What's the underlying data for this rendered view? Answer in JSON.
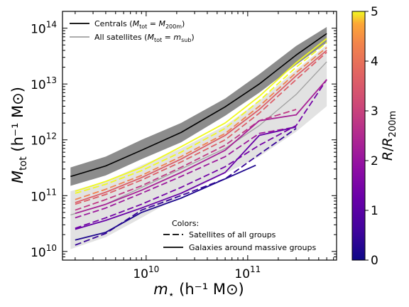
{
  "chart_data": {
    "type": "line",
    "title": "",
    "xlabel": {
      "base": "m",
      "sub": "⋆",
      "rest": " (h⁻¹ M⊙)"
    },
    "ylabel": {
      "base": "M",
      "sub": "tot",
      "rest": " (h⁻¹ M⊙)"
    },
    "xscale": "log",
    "yscale": "log",
    "xlim": [
      1500000000.0,
      750000000000.0
    ],
    "ylim": [
      7000000000.0,
      200000000000000.0
    ],
    "xticks": [
      {
        "value": 10000000000.0,
        "label": "10^10"
      },
      {
        "value": 100000000000.0,
        "label": "10^11"
      }
    ],
    "yticks": [
      {
        "value": 10000000000.0,
        "label": "10^10"
      },
      {
        "value": 100000000000.0,
        "label": "10^11"
      },
      {
        "value": 1000000000000.0,
        "label": "10^12"
      },
      {
        "value": 10000000000000.0,
        "label": "10^13"
      },
      {
        "value": 100000000000000.0,
        "label": "10^14"
      }
    ],
    "legend_top": {
      "placement": "top-left",
      "entries": [
        {
          "label": "Centrals (M_tot = M_200m)",
          "style": "solid",
          "color": "#000000"
        },
        {
          "label": "All satellites (M_tot = m_sub)",
          "style": "solid",
          "color": "#a0a0a0"
        }
      ]
    },
    "legend_bottom": {
      "placement": "lower-right",
      "title": "Colors:",
      "entries": [
        {
          "label": "Satellites of all groups",
          "style": "dashed"
        },
        {
          "label": "Galaxies around massive groups",
          "style": "solid"
        }
      ]
    },
    "colorbar": {
      "label": "R/R_200m",
      "range": [
        0,
        5
      ],
      "ticks": [
        "0",
        "1",
        "2",
        "3",
        "4",
        "5"
      ],
      "colormap": "plasma"
    },
    "bands": [
      {
        "name": "Centrals scatter",
        "color": "#8c8c8c",
        "x": [
          1800000000.0,
          4000000000.0,
          9000000000.0,
          22000000000.0,
          60000000000.0,
          130000000000.0,
          300000000000.0,
          600000000000.0
        ],
        "lower": [
          150000000000.0,
          230000000000.0,
          450000000000.0,
          900000000000.0,
          2700000000000.0,
          7000000000000.0,
          22000000000000.0,
          55000000000000.0
        ],
        "upper": [
          320000000000.0,
          500000000000.0,
          1000000000000.0,
          2000000000000.0,
          5500000000000.0,
          15000000000000.0,
          48000000000000.0,
          105000000000000.0
        ]
      },
      {
        "name": "All satellites scatter",
        "color": "#e2e2e2",
        "x": [
          1800000000.0,
          4000000000.0,
          9000000000.0,
          22000000000.0,
          60000000000.0,
          130000000000.0,
          300000000000.0,
          600000000000.0
        ],
        "lower": [
          11000000000.0,
          18000000000.0,
          40000000000.0,
          100000000000.0,
          250000000000.0,
          500000000000.0,
          1400000000000.0,
          4000000000000.0
        ],
        "upper": [
          120000000000.0,
          180000000000.0,
          350000000000.0,
          700000000000.0,
          1800000000000.0,
          5000000000000.0,
          18000000000000.0,
          50000000000000.0
        ]
      }
    ],
    "series": [
      {
        "key": "centrals",
        "style": "solid",
        "color": "#000000",
        "width": 1.6,
        "x": [
          1800000000.0,
          4000000000.0,
          9000000000.0,
          22000000000.0,
          60000000000.0,
          130000000000.0,
          300000000000.0,
          600000000000.0
        ],
        "y": [
          220000000000.0,
          340000000000.0,
          650000000000.0,
          1350000000000.0,
          3900000000000.0,
          10000000000000.0,
          33000000000000.0,
          80000000000000.0
        ]
      },
      {
        "key": "all-satellites",
        "style": "solid",
        "color": "#a0a0a0",
        "width": 1.3,
        "x": [
          1800000000.0,
          4000000000.0,
          9000000000.0,
          22000000000.0,
          60000000000.0,
          130000000000.0,
          300000000000.0,
          600000000000.0
        ],
        "y": [
          45000000000.0,
          70000000000.0,
          140000000000.0,
          300000000000.0,
          700000000000.0,
          1800000000000.0,
          6500000000000.0,
          25000000000000.0
        ]
      },
      {
        "key": "sat-r5",
        "style": "dashed",
        "r": 5.0,
        "x": [
          2000000000.0,
          4000000000.0,
          9000000000.0,
          22000000000.0,
          60000000000.0,
          130000000000.0,
          300000000000.0,
          600000000000.0
        ],
        "y": [
          110000000000.0,
          160000000000.0,
          280000000000.0,
          600000000000.0,
          1600000000000.0,
          5000000000000.0,
          20000000000000.0,
          55000000000000.0
        ]
      },
      {
        "key": "sat-r43",
        "style": "dashed",
        "r": 4.3,
        "x": [
          2000000000.0,
          4000000000.0,
          9000000000.0,
          22000000000.0,
          60000000000.0,
          130000000000.0,
          300000000000.0,
          600000000000.0
        ],
        "y": [
          85000000000.0,
          130000000000.0,
          230000000000.0,
          500000000000.0,
          1300000000000.0,
          4000000000000.0,
          16000000000000.0,
          45000000000000.0
        ]
      },
      {
        "key": "sat-r36",
        "style": "dashed",
        "r": 3.6,
        "x": [
          2000000000.0,
          4000000000.0,
          9000000000.0,
          22000000000.0,
          60000000000.0,
          130000000000.0,
          300000000000.0,
          600000000000.0
        ],
        "y": [
          70000000000.0,
          105000000000.0,
          190000000000.0,
          400000000000.0,
          1000000000000.0,
          3000000000000.0,
          12000000000000.0,
          37000000000000.0
        ]
      },
      {
        "key": "sat-r28",
        "style": "dashed",
        "r": 2.8,
        "x": [
          2000000000.0,
          4000000000.0,
          9000000000.0,
          22000000000.0,
          60000000000.0,
          130000000000.0,
          300000000000.0
        ],
        "y": [
          55000000000.0,
          85000000000.0,
          150000000000.0,
          320000000000.0,
          800000000000.0,
          2200000000000.0,
          3500000000000.0
        ]
      },
      {
        "key": "sat-r21",
        "style": "dashed",
        "r": 2.1,
        "x": [
          2000000000.0,
          4000000000.0,
          9000000000.0,
          22000000000.0,
          60000000000.0,
          130000000000.0,
          300000000000.0
        ],
        "y": [
          40000000000.0,
          60000000000.0,
          110000000000.0,
          220000000000.0,
          500000000000.0,
          1300000000000.0,
          1700000000000.0
        ]
      },
      {
        "key": "sat-r14",
        "style": "dashed",
        "r": 1.4,
        "x": [
          2000000000.0,
          4000000000.0,
          9000000000.0,
          22000000000.0,
          60000000000.0,
          130000000000.0,
          300000000000.0,
          600000000000.0
        ],
        "y": [
          26000000000.0,
          40000000000.0,
          70000000000.0,
          140000000000.0,
          330000000000.0,
          800000000000.0,
          1800000000000.0,
          12000000000000.0
        ]
      },
      {
        "key": "sat-r05",
        "style": "dashed",
        "r": 0.5,
        "x": [
          2000000000.0,
          4000000000.0,
          9000000000.0,
          22000000000.0,
          60000000000.0,
          130000000000.0,
          300000000000.0
        ],
        "y": [
          13000000000.0,
          21000000000.0,
          55000000000.0,
          100000000000.0,
          200000000000.0,
          550000000000.0,
          1600000000000.0
        ]
      },
      {
        "key": "mass-r5",
        "style": "solid",
        "r": 5.0,
        "x": [
          2000000000.0,
          4000000000.0,
          9000000000.0,
          22000000000.0,
          60000000000.0,
          130000000000.0,
          300000000000.0,
          600000000000.0
        ],
        "y": [
          120000000000.0,
          180000000000.0,
          320000000000.0,
          750000000000.0,
          2000000000000.0,
          6000000000000.0,
          24000000000000.0,
          65000000000000.0
        ]
      },
      {
        "key": "mass-r36",
        "style": "solid",
        "r": 3.6,
        "x": [
          2000000000.0,
          4000000000.0,
          9000000000.0,
          22000000000.0,
          60000000000.0,
          130000000000.0,
          300000000000.0,
          600000000000.0
        ],
        "y": [
          75000000000.0,
          115000000000.0,
          210000000000.0,
          450000000000.0,
          1200000000000.0,
          3500000000000.0,
          14000000000000.0,
          40000000000000.0
        ]
      },
      {
        "key": "mass-r23",
        "style": "solid",
        "r": 2.3,
        "x": [
          2000000000.0,
          4000000000.0,
          9000000000.0,
          22000000000.0,
          60000000000.0,
          130000000000.0,
          300000000000.0,
          600000000000.0
        ],
        "y": [
          48000000000.0,
          70000000000.0,
          125000000000.0,
          260000000000.0,
          650000000000.0,
          2200000000000.0,
          2800000000000.0,
          12000000000000.0
        ]
      },
      {
        "key": "mass-r12",
        "style": "solid",
        "r": 1.2,
        "x": [
          2000000000.0,
          4000000000.0,
          9000000000.0,
          22000000000.0,
          60000000000.0,
          130000000000.0,
          300000000000.0
        ],
        "y": [
          25000000000.0,
          36000000000.0,
          60000000000.0,
          110000000000.0,
          260000000000.0,
          1200000000000.0,
          1700000000000.0
        ]
      },
      {
        "key": "mass-r02",
        "style": "solid",
        "r": 0.2,
        "x": [
          2000000000.0,
          4000000000.0,
          9000000000.0,
          22000000000.0,
          60000000000.0,
          120000000000.0
        ],
        "y": [
          16000000000.0,
          22000000000.0,
          50000000000.0,
          90000000000.0,
          200000000000.0,
          350000000000.0
        ]
      }
    ]
  }
}
